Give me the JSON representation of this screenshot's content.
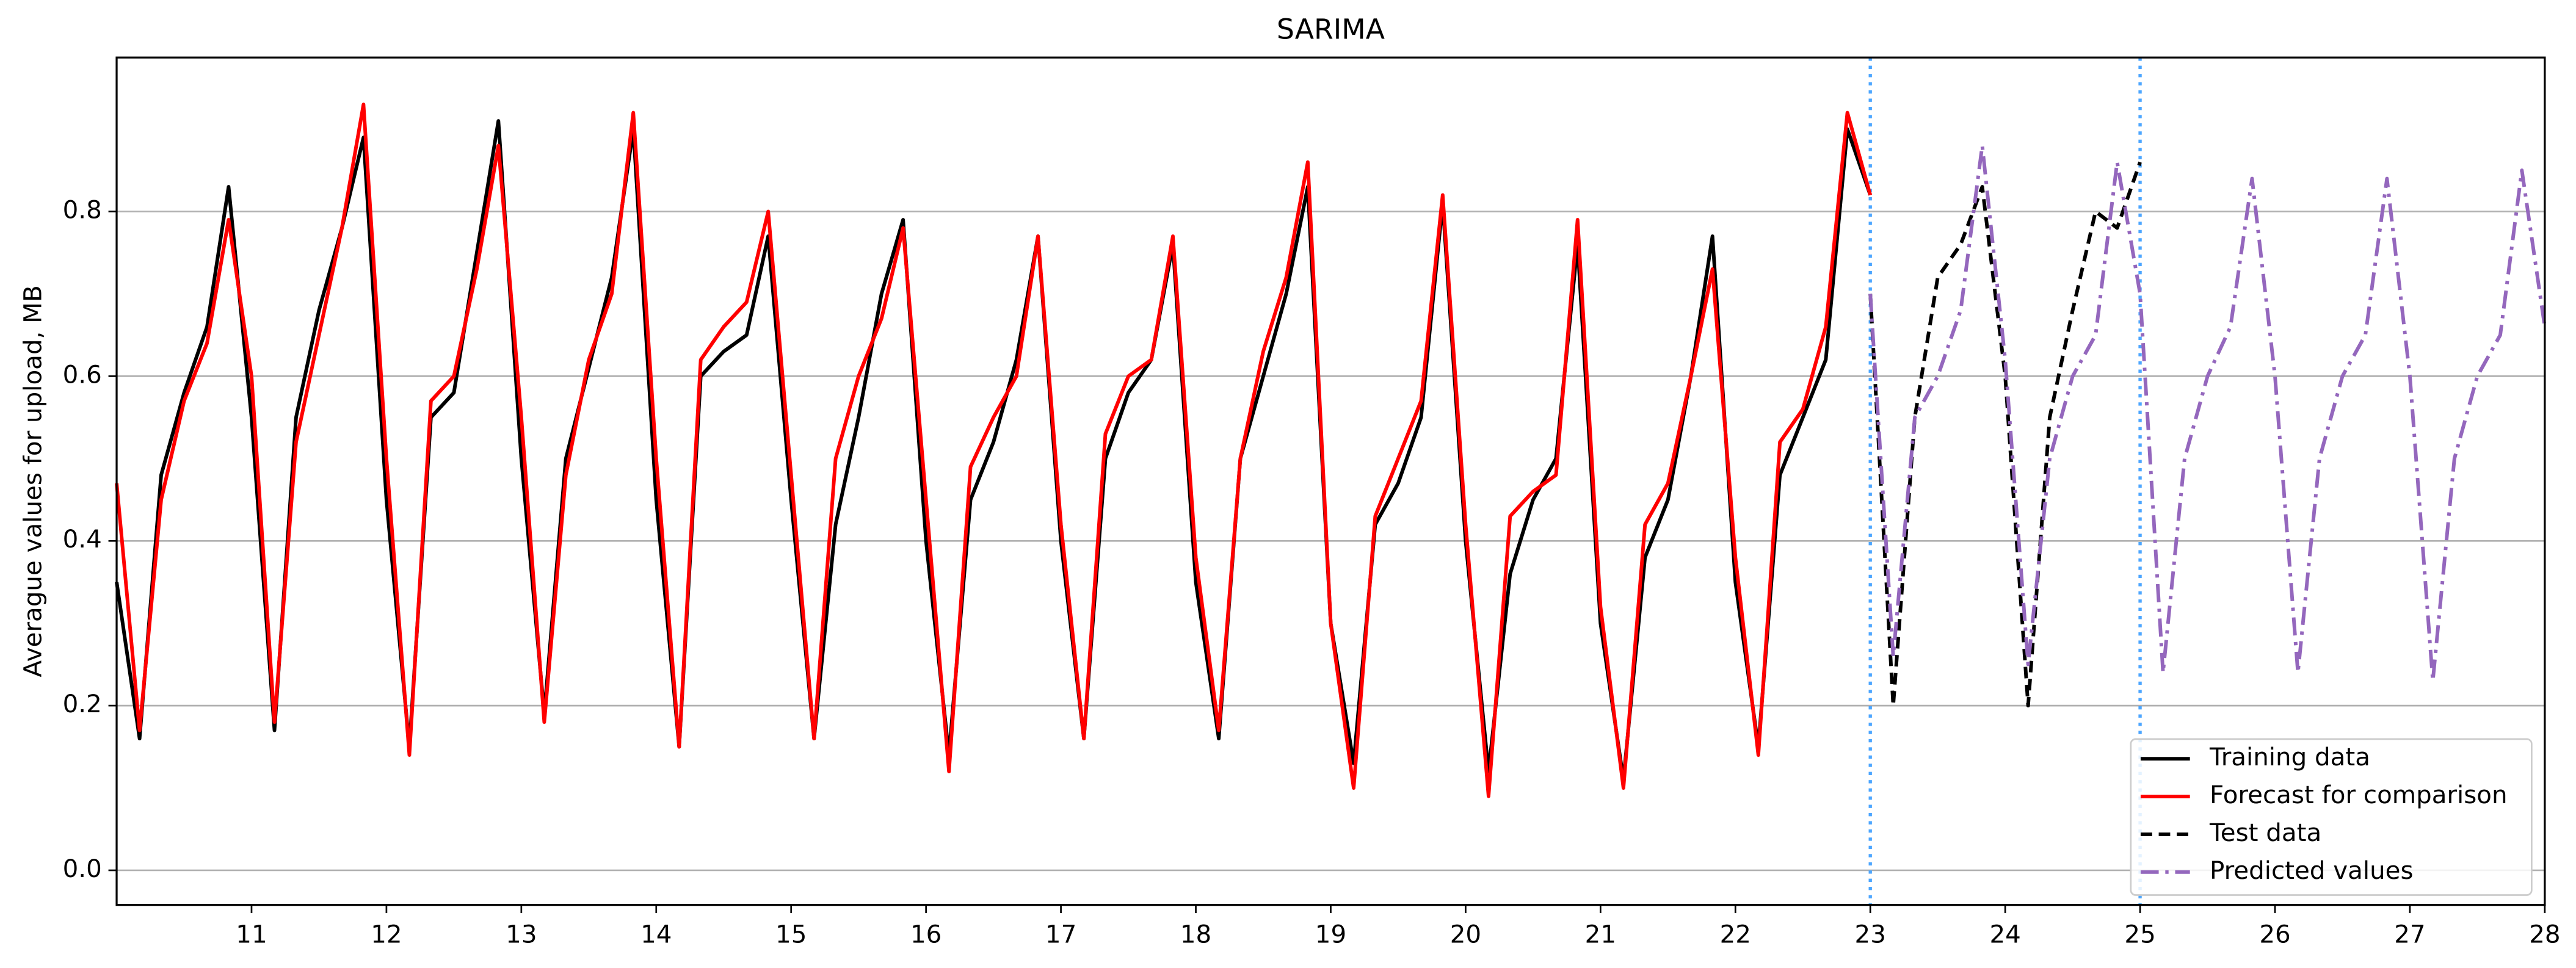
{
  "chart_data": {
    "type": "line",
    "title": "SARIMA",
    "y_label": "Averague values for upload, MB",
    "xlim": [
      10,
      28
    ],
    "ylim": [
      -0.042,
      0.987
    ],
    "xticks": [
      11,
      12,
      13,
      14,
      15,
      16,
      17,
      18,
      19,
      20,
      21,
      22,
      23,
      24,
      25,
      26,
      27,
      28
    ],
    "yticks": [
      {
        "value": 0,
        "label": "0.0"
      },
      0.2,
      0.4,
      0.6,
      0.8
    ],
    "grid": "y",
    "legend": "lower right",
    "vlines": [
      23,
      25
    ],
    "vline_color": "#4da6ff",
    "series": [
      {
        "name": "Training data",
        "color": "#000000",
        "linestyle": "solid",
        "x": [
          10,
          10.17,
          10.33,
          10.5,
          10.67,
          10.83,
          11,
          11.17,
          11.33,
          11.5,
          11.67,
          11.83,
          12,
          12.17,
          12.33,
          12.5,
          12.67,
          12.83,
          13,
          13.17,
          13.33,
          13.5,
          13.67,
          13.83,
          14,
          14.17,
          14.33,
          14.5,
          14.67,
          14.83,
          15,
          15.17,
          15.33,
          15.5,
          15.67,
          15.83,
          16,
          16.17,
          16.33,
          16.5,
          16.67,
          16.83,
          17,
          17.17,
          17.33,
          17.5,
          17.67,
          17.83,
          18,
          18.17,
          18.33,
          18.5,
          18.67,
          18.83,
          19,
          19.17,
          19.33,
          19.5,
          19.67,
          19.83,
          20,
          20.17,
          20.33,
          20.5,
          20.67,
          20.83,
          21,
          21.17,
          21.33,
          21.5,
          21.67,
          21.83,
          22,
          22.17,
          22.33,
          22.5,
          22.67,
          22.83,
          23
        ],
        "values": [
          0.35,
          0.16,
          0.48,
          0.58,
          0.66,
          0.83,
          0.55,
          0.17,
          0.55,
          0.68,
          0.78,
          0.89,
          0.45,
          0.15,
          0.55,
          0.58,
          0.75,
          0.91,
          0.5,
          0.19,
          0.5,
          0.61,
          0.72,
          0.9,
          0.45,
          0.15,
          0.6,
          0.63,
          0.65,
          0.77,
          0.45,
          0.16,
          0.42,
          0.55,
          0.7,
          0.79,
          0.4,
          0.14,
          0.45,
          0.52,
          0.62,
          0.77,
          0.4,
          0.16,
          0.5,
          0.58,
          0.62,
          0.76,
          0.35,
          0.16,
          0.5,
          0.6,
          0.7,
          0.83,
          0.3,
          0.13,
          0.42,
          0.47,
          0.55,
          0.81,
          0.4,
          0.12,
          0.36,
          0.45,
          0.5,
          0.76,
          0.3,
          0.11,
          0.38,
          0.45,
          0.6,
          0.77,
          0.35,
          0.15,
          0.48,
          0.55,
          0.62,
          0.9,
          0.82
        ]
      },
      {
        "name": "Forecast for comparison",
        "color": "#ff0000",
        "linestyle": "solid",
        "x": [
          10,
          10.17,
          10.33,
          10.5,
          10.67,
          10.83,
          11,
          11.17,
          11.33,
          11.5,
          11.67,
          11.83,
          12,
          12.17,
          12.33,
          12.5,
          12.67,
          12.83,
          13,
          13.17,
          13.33,
          13.5,
          13.67,
          13.83,
          14,
          14.17,
          14.33,
          14.5,
          14.67,
          14.83,
          15,
          15.17,
          15.33,
          15.5,
          15.67,
          15.83,
          16,
          16.17,
          16.33,
          16.5,
          16.67,
          16.83,
          17,
          17.17,
          17.33,
          17.5,
          17.67,
          17.83,
          18,
          18.17,
          18.33,
          18.5,
          18.67,
          18.83,
          19,
          19.17,
          19.33,
          19.5,
          19.67,
          19.83,
          20,
          20.17,
          20.33,
          20.5,
          20.67,
          20.83,
          21,
          21.17,
          21.33,
          21.5,
          21.67,
          21.83,
          22,
          22.17,
          22.33,
          22.5,
          22.67,
          22.83,
          23
        ],
        "values": [
          0.47,
          0.17,
          0.45,
          0.57,
          0.64,
          0.79,
          0.6,
          0.18,
          0.52,
          0.65,
          0.78,
          0.93,
          0.5,
          0.14,
          0.57,
          0.6,
          0.73,
          0.88,
          0.55,
          0.18,
          0.48,
          0.62,
          0.7,
          0.92,
          0.5,
          0.15,
          0.62,
          0.66,
          0.69,
          0.8,
          0.48,
          0.16,
          0.5,
          0.6,
          0.67,
          0.78,
          0.45,
          0.12,
          0.49,
          0.55,
          0.6,
          0.77,
          0.42,
          0.16,
          0.53,
          0.6,
          0.62,
          0.77,
          0.38,
          0.17,
          0.5,
          0.63,
          0.72,
          0.86,
          0.3,
          0.1,
          0.43,
          0.5,
          0.57,
          0.82,
          0.42,
          0.09,
          0.43,
          0.46,
          0.48,
          0.79,
          0.32,
          0.1,
          0.42,
          0.47,
          0.6,
          0.73,
          0.38,
          0.14,
          0.52,
          0.56,
          0.66,
          0.92,
          0.82
        ]
      },
      {
        "name": "Test data",
        "color": "#000000",
        "linestyle": "dashed",
        "x": [
          23,
          23.17,
          23.33,
          23.5,
          23.67,
          23.83,
          24,
          24.17,
          24.33,
          24.5,
          24.67,
          24.83,
          25
        ],
        "values": [
          0.7,
          0.2,
          0.55,
          0.72,
          0.76,
          0.83,
          0.6,
          0.2,
          0.55,
          0.68,
          0.8,
          0.78,
          0.86
        ]
      },
      {
        "name": "Predicted values",
        "color": "#9467bd",
        "linestyle": "dashdot",
        "x": [
          23,
          23.17,
          23.33,
          23.5,
          23.67,
          23.83,
          24,
          24.17,
          24.33,
          24.5,
          24.67,
          24.83,
          25,
          25.17,
          25.33,
          25.5,
          25.67,
          25.83,
          26,
          26.17,
          26.33,
          26.5,
          26.67,
          26.83,
          27,
          27.17,
          27.33,
          27.5,
          27.67,
          27.83,
          28
        ],
        "values": [
          0.7,
          0.26,
          0.55,
          0.6,
          0.68,
          0.88,
          0.62,
          0.25,
          0.5,
          0.6,
          0.65,
          0.86,
          0.7,
          0.24,
          0.5,
          0.6,
          0.66,
          0.84,
          0.6,
          0.24,
          0.5,
          0.6,
          0.65,
          0.84,
          0.6,
          0.23,
          0.5,
          0.6,
          0.65,
          0.85,
          0.66
        ]
      }
    ]
  }
}
